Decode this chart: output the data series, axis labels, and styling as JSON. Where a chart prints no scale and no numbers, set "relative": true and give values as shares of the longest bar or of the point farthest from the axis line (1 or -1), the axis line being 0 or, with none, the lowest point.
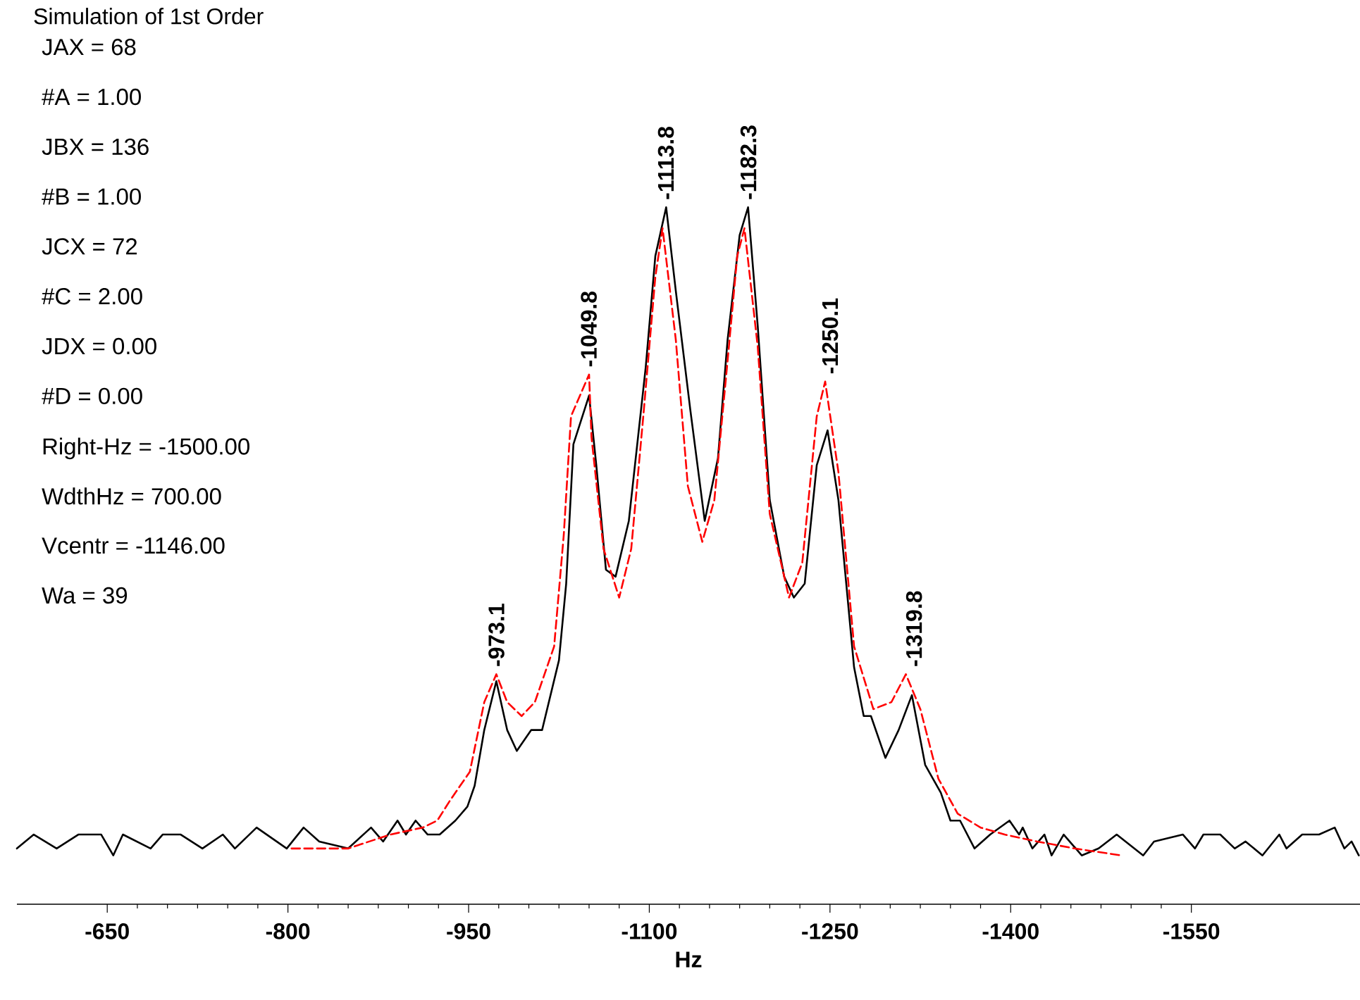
{
  "chart_data": {
    "type": "line",
    "title": "Simulation of 1st Order",
    "xlabel": "Hz",
    "relative": true,
    "tick_labels": "x",
    "grid": false,
    "marker": "none",
    "xlim": [
      -575,
      -1690
    ],
    "xticks": [
      -650,
      -800,
      -950,
      -1100,
      -1250,
      -1400,
      -1550
    ],
    "annotations": [
      "JAX = 68",
      "#A = 1.00",
      "JBX = 136",
      "#B = 1.00",
      "JCX = 72",
      "#C = 2.00",
      "JDX = 0.00",
      "#D = 0.00",
      "Right-Hz = -1500.00",
      "WdthHz = 700.00",
      "Vcentr = -1146.00",
      "Wa = 39",
      {
        "text": "-973.1",
        "x": -973.1,
        "y": 0.33
      },
      {
        "text": "-1049.8",
        "x": -1049.8,
        "y": 0.76
      },
      {
        "text": "-1113.8",
        "x": -1113.8,
        "y": 1.0
      },
      {
        "text": "-1182.3",
        "x": -1182.3,
        "y": 1.0
      },
      {
        "text": "-1250.1",
        "x": -1250.1,
        "y": 0.75
      },
      {
        "text": "-1319.8",
        "x": -1319.8,
        "y": 0.33
      }
    ],
    "series": [
      {
        "color": "#000000",
        "line_style": "solid",
        "x": [
          -575,
          -589,
          -608,
          -626,
          -645,
          -655,
          -663,
          -686,
          -696,
          -711,
          -729,
          -746,
          -756,
          -774,
          -799,
          -813,
          -826,
          -850,
          -869,
          -879,
          -891,
          -898,
          -906,
          -916,
          -926,
          -939,
          -949,
          -955,
          -963,
          -973,
          -982,
          -990,
          -1002,
          -1011,
          -1025,
          -1031,
          -1037,
          -1050,
          -1056,
          -1064,
          -1072,
          -1083,
          -1097,
          -1105,
          -1114,
          -1122,
          -1134,
          -1146,
          -1157,
          -1165,
          -1175,
          -1182,
          -1190,
          -1200,
          -1212,
          -1220,
          -1229,
          -1239,
          -1248,
          -1257,
          -1270,
          -1278,
          -1284,
          -1296,
          -1307,
          -1318,
          -1329,
          -1342,
          -1350,
          -1358,
          -1370,
          -1383,
          -1399,
          -1407,
          -1410,
          -1418,
          -1428,
          -1434,
          -1444,
          -1459,
          -1473,
          -1488,
          -1510,
          -1519,
          -1543,
          -1553,
          -1560,
          -1574,
          -1586,
          -1595,
          -1609,
          -1623,
          -1629,
          -1642,
          -1656,
          -1669,
          -1677,
          -1683,
          -1689
        ],
        "values": [
          0.08,
          0.1,
          0.08,
          0.1,
          0.1,
          0.07,
          0.1,
          0.08,
          0.1,
          0.1,
          0.08,
          0.1,
          0.08,
          0.11,
          0.08,
          0.11,
          0.09,
          0.08,
          0.11,
          0.09,
          0.12,
          0.1,
          0.12,
          0.1,
          0.1,
          0.12,
          0.14,
          0.17,
          0.25,
          0.32,
          0.25,
          0.22,
          0.25,
          0.25,
          0.35,
          0.46,
          0.66,
          0.73,
          0.63,
          0.48,
          0.47,
          0.55,
          0.77,
          0.93,
          1.0,
          0.88,
          0.71,
          0.55,
          0.64,
          0.81,
          0.96,
          1.0,
          0.83,
          0.58,
          0.47,
          0.44,
          0.46,
          0.63,
          0.68,
          0.58,
          0.34,
          0.27,
          0.27,
          0.21,
          0.25,
          0.3,
          0.2,
          0.16,
          0.12,
          0.12,
          0.08,
          0.1,
          0.12,
          0.1,
          0.11,
          0.08,
          0.1,
          0.07,
          0.1,
          0.07,
          0.08,
          0.1,
          0.07,
          0.09,
          0.1,
          0.08,
          0.1,
          0.1,
          0.08,
          0.09,
          0.07,
          0.1,
          0.08,
          0.1,
          0.1,
          0.11,
          0.08,
          0.09,
          0.07
        ]
      },
      {
        "color": "#ff0000",
        "line_style": "dashed",
        "x": [
          -803,
          -826,
          -850,
          -885,
          -912,
          -924,
          -935,
          -951,
          -963,
          -973,
          -982,
          -994,
          -1005,
          -1021,
          -1029,
          -1035,
          -1050,
          -1052,
          -1062,
          -1075,
          -1085,
          -1095,
          -1105,
          -1111,
          -1122,
          -1132,
          -1144,
          -1154,
          -1165,
          -1173,
          -1179,
          -1190,
          -1200,
          -1216,
          -1227,
          -1239,
          -1246,
          -1257,
          -1270,
          -1286,
          -1301,
          -1313,
          -1325,
          -1340,
          -1356,
          -1375,
          -1395,
          -1422,
          -1453,
          -1492
        ],
        "values": [
          0.08,
          0.08,
          0.08,
          0.1,
          0.11,
          0.12,
          0.15,
          0.19,
          0.29,
          0.33,
          0.29,
          0.27,
          0.29,
          0.37,
          0.53,
          0.7,
          0.76,
          0.67,
          0.51,
          0.44,
          0.51,
          0.7,
          0.9,
          0.97,
          0.81,
          0.6,
          0.52,
          0.58,
          0.78,
          0.93,
          0.97,
          0.8,
          0.56,
          0.44,
          0.49,
          0.7,
          0.75,
          0.62,
          0.37,
          0.28,
          0.29,
          0.33,
          0.28,
          0.18,
          0.13,
          0.11,
          0.1,
          0.09,
          0.08,
          0.07
        ]
      }
    ]
  }
}
